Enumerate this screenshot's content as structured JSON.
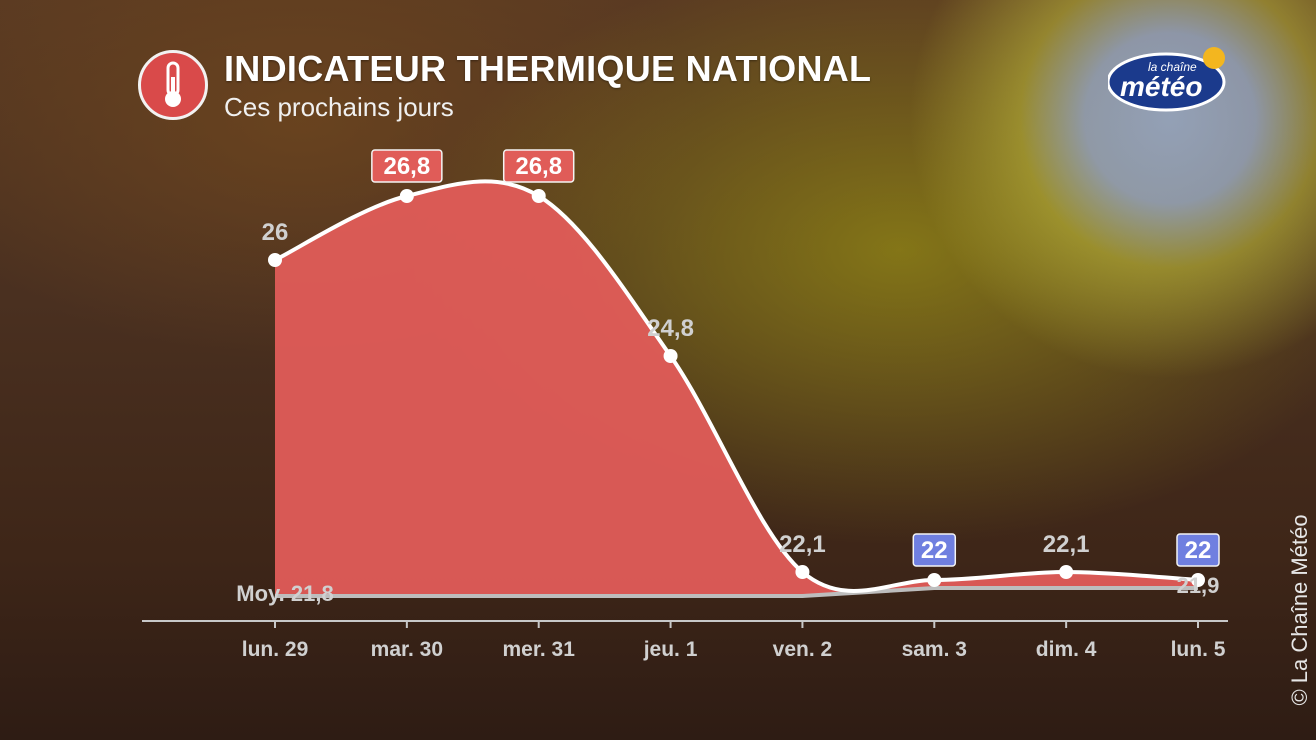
{
  "header": {
    "title": "INDICATEUR THERMIQUE NATIONAL",
    "subtitle": "Ces prochains jours",
    "icon": "thermometer-icon"
  },
  "logo": {
    "line1": "la chaîne",
    "line2": "météo"
  },
  "copyright": "© La Chaîne Météo",
  "colors": {
    "area": "#e05c58",
    "line": "#ffffff",
    "high_label": "#e05c58",
    "low_label": "#6f7fe0",
    "value_text": "#d0d0d0",
    "axis": "#c8c8c8"
  },
  "chart_data": {
    "type": "area",
    "categories": [
      "lun. 29",
      "mar. 30",
      "mer. 31",
      "jeu. 1",
      "ven. 2",
      "sam. 3",
      "dim. 4",
      "lun. 5"
    ],
    "series": [
      {
        "values": [
          26,
          26.8,
          26.8,
          24.8,
          22.1,
          22,
          22.1,
          22
        ],
        "labels": [
          "26",
          "26,8",
          "26,8",
          "24,8",
          "22,1",
          "22",
          "22,1",
          "22"
        ],
        "highlight": [
          "none",
          "high",
          "high",
          "none",
          "none",
          "low",
          "none",
          "low"
        ]
      },
      {
        "values": [
          21.8,
          21.8,
          21.8,
          21.8,
          21.8,
          21.9,
          21.9,
          21.9
        ]
      }
    ],
    "baseline_labels": {
      "start": "Moy. 21,8",
      "end": "21,9"
    },
    "ylim": [
      21.5,
      27.5
    ],
    "grid": false,
    "legend": "none"
  }
}
